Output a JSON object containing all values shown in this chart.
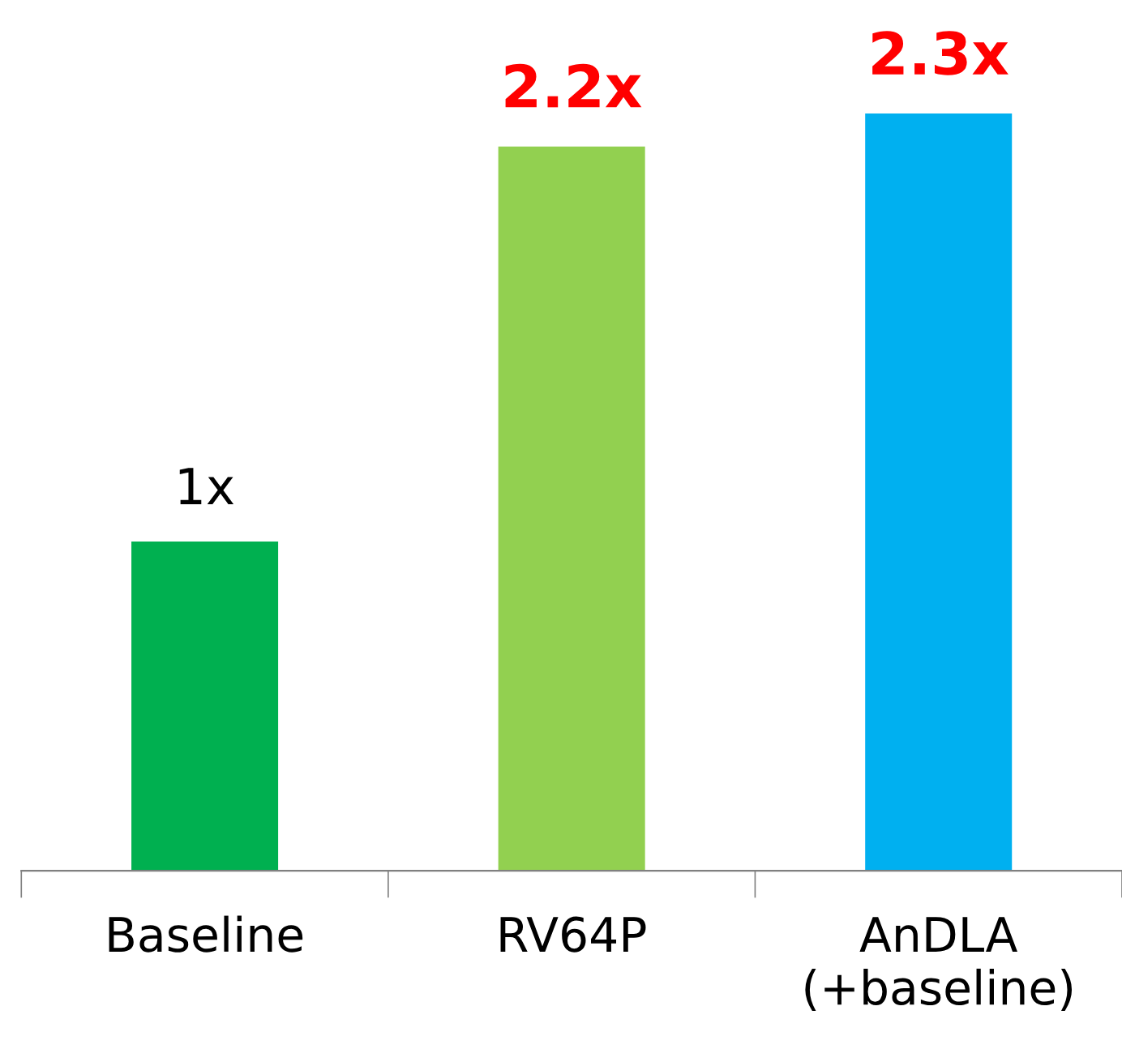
{
  "chart_data": {
    "type": "bar",
    "categories": [
      "Baseline",
      "RV64P",
      "AnDLA\n(+baseline)"
    ],
    "values": [
      1,
      2.2,
      2.3
    ],
    "colors": [
      "#00b050",
      "#92d050",
      "#00b0f0"
    ],
    "value_labels": [
      "1x",
      "2.2x",
      "2.3x"
    ],
    "grid": false,
    "legend": false
  }
}
